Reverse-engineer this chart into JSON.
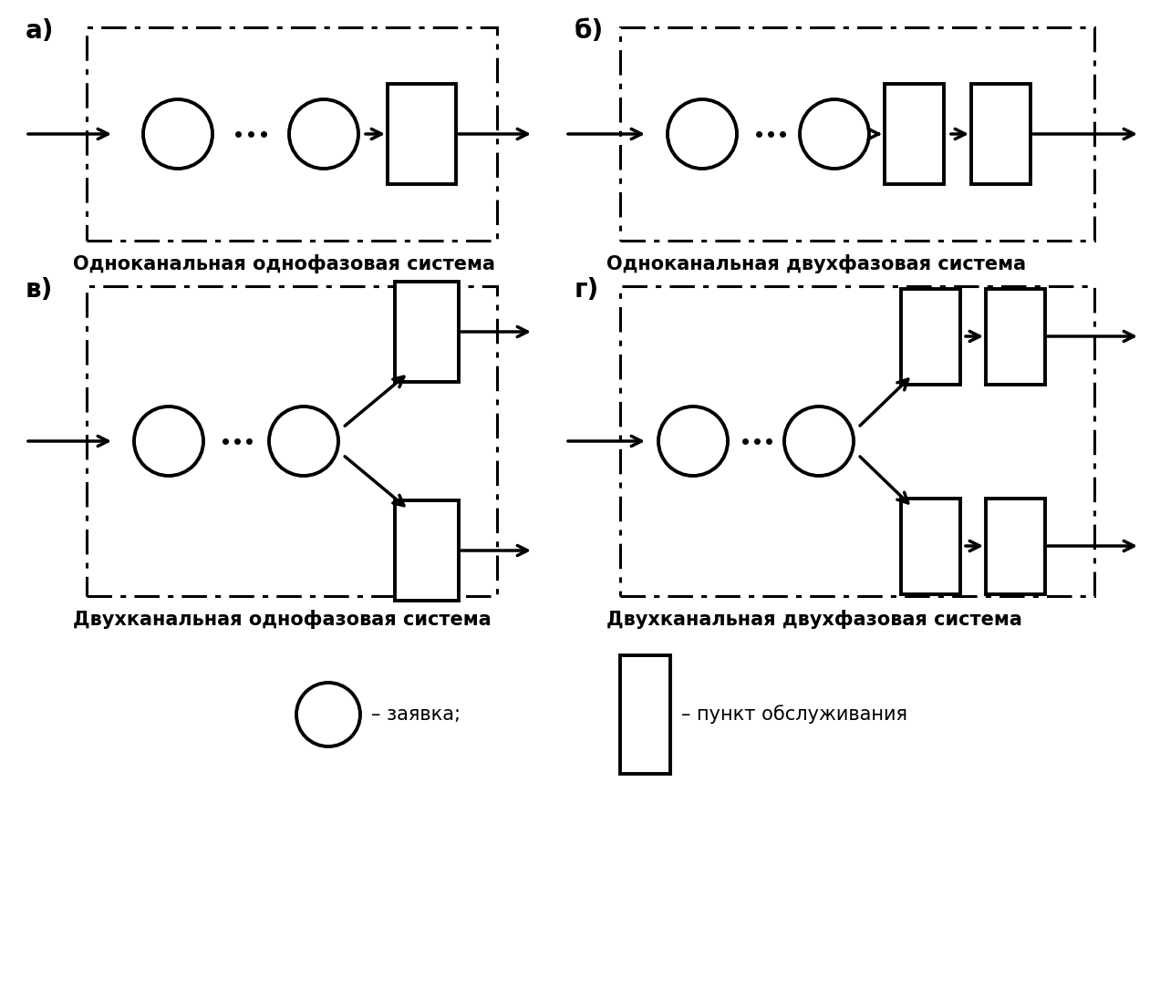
{
  "bg_color": "#ffffff",
  "diagrams": [
    {
      "label": "а)",
      "title": "Одноканальная однофазовая система",
      "type": "a"
    },
    {
      "label": "б)",
      "title": "Одноканальная двухфазовая система",
      "type": "b"
    },
    {
      "label": "в)",
      "title": "Двухканальная однофазовая система",
      "type": "c"
    },
    {
      "label": "г)",
      "title": "Двухканальная двухфазовая система",
      "type": "d"
    }
  ],
  "legend_text_circle": "– заявка;",
  "legend_text_rect": "– пункт обслуживания",
  "font_size_label": 20,
  "font_size_title": 15,
  "font_size_legend": 15
}
